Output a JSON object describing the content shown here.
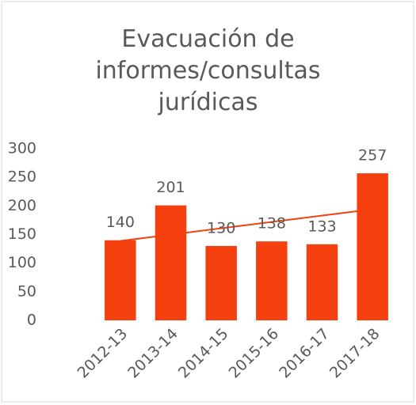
{
  "chart_data": {
    "type": "bar",
    "title": "Evacuación de informes/consultas jurídicas",
    "categories": [
      "2012-13",
      "2013-14",
      "2014-15",
      "2015-16",
      "2016-17",
      "2017-18"
    ],
    "values": [
      140,
      201,
      130,
      138,
      133,
      257
    ],
    "color": "#f4400e",
    "ylim": [
      0,
      300
    ],
    "yticks": [
      0,
      50,
      100,
      150,
      200,
      250,
      300
    ],
    "grid": false,
    "trendline": true,
    "trendline_color": "#f4400e"
  }
}
